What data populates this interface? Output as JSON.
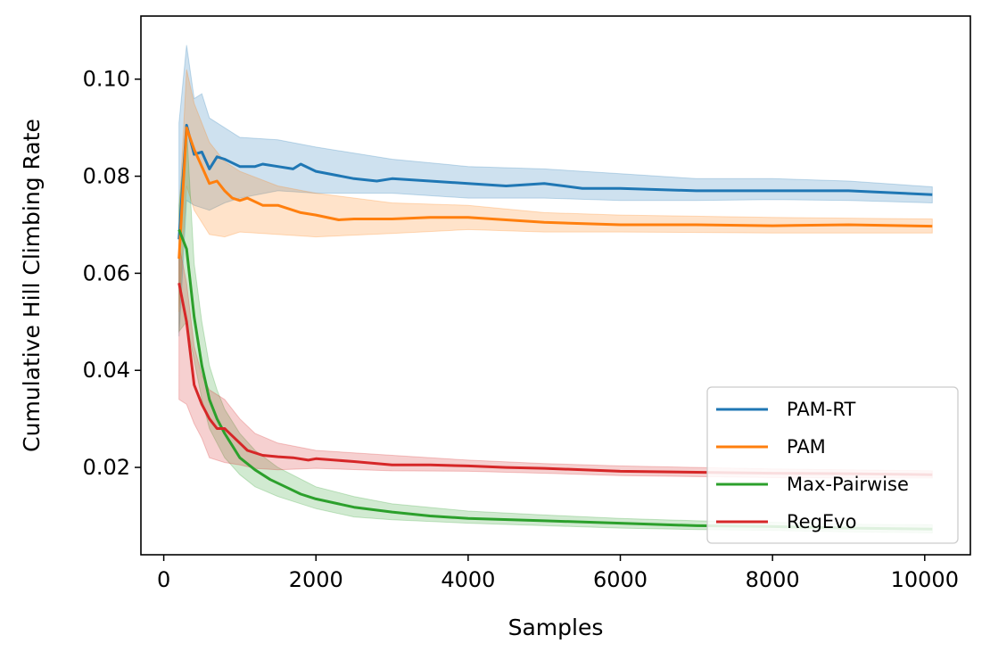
{
  "chart_data": {
    "type": "line",
    "xlabel": "Samples",
    "ylabel": "Cumulative Hill Climbing Rate",
    "xlim": [
      -300,
      10600
    ],
    "ylim": [
      0.002,
      0.113
    ],
    "xticks": [
      0,
      2000,
      4000,
      6000,
      8000,
      10000
    ],
    "xtick_labels": [
      "0",
      "2000",
      "4000",
      "6000",
      "8000",
      "10000"
    ],
    "yticks": [
      0.02,
      0.04,
      0.06,
      0.08,
      0.1
    ],
    "ytick_labels": [
      "0.02",
      "0.04",
      "0.06",
      "0.08",
      "0.10"
    ],
    "grid": false,
    "legend_position": "lower-right",
    "series": [
      {
        "name": "PAM-RT",
        "color": "#1f77b4",
        "points": [
          [
            200,
            0.067
          ],
          [
            300,
            0.0905
          ],
          [
            400,
            0.0845
          ],
          [
            500,
            0.085
          ],
          [
            600,
            0.0815
          ],
          [
            700,
            0.084
          ],
          [
            800,
            0.0835
          ],
          [
            1000,
            0.082
          ],
          [
            1200,
            0.082
          ],
          [
            1300,
            0.0825
          ],
          [
            1500,
            0.082
          ],
          [
            1700,
            0.0815
          ],
          [
            1800,
            0.0825
          ],
          [
            2000,
            0.081
          ],
          [
            2500,
            0.0795
          ],
          [
            2800,
            0.079
          ],
          [
            3000,
            0.0795
          ],
          [
            3500,
            0.079
          ],
          [
            4000,
            0.0785
          ],
          [
            4500,
            0.078
          ],
          [
            5000,
            0.0785
          ],
          [
            5500,
            0.0775
          ],
          [
            6000,
            0.0775
          ],
          [
            7000,
            0.077
          ],
          [
            8000,
            0.077
          ],
          [
            9000,
            0.077
          ],
          [
            10100,
            0.0762
          ]
        ],
        "band_upper": [
          [
            200,
            0.091
          ],
          [
            300,
            0.107
          ],
          [
            400,
            0.096
          ],
          [
            500,
            0.097
          ],
          [
            600,
            0.092
          ],
          [
            800,
            0.09
          ],
          [
            1000,
            0.088
          ],
          [
            1500,
            0.0875
          ],
          [
            2000,
            0.086
          ],
          [
            3000,
            0.0835
          ],
          [
            4000,
            0.082
          ],
          [
            5000,
            0.0815
          ],
          [
            6000,
            0.0805
          ],
          [
            7000,
            0.0795
          ],
          [
            8000,
            0.0795
          ],
          [
            9000,
            0.079
          ],
          [
            10100,
            0.0778
          ]
        ],
        "band_lower": [
          [
            200,
            0.047
          ],
          [
            300,
            0.075
          ],
          [
            400,
            0.074
          ],
          [
            600,
            0.073
          ],
          [
            800,
            0.0745
          ],
          [
            1000,
            0.0755
          ],
          [
            1500,
            0.077
          ],
          [
            2000,
            0.0765
          ],
          [
            3000,
            0.0765
          ],
          [
            4000,
            0.0755
          ],
          [
            5000,
            0.0755
          ],
          [
            6000,
            0.075
          ],
          [
            7000,
            0.075
          ],
          [
            8000,
            0.0752
          ],
          [
            9000,
            0.075
          ],
          [
            10100,
            0.0745
          ]
        ]
      },
      {
        "name": "PAM",
        "color": "#ff7f0e",
        "points": [
          [
            200,
            0.063
          ],
          [
            300,
            0.09
          ],
          [
            400,
            0.0855
          ],
          [
            500,
            0.082
          ],
          [
            600,
            0.0785
          ],
          [
            700,
            0.079
          ],
          [
            800,
            0.077
          ],
          [
            900,
            0.0755
          ],
          [
            1000,
            0.075
          ],
          [
            1100,
            0.0755
          ],
          [
            1300,
            0.074
          ],
          [
            1500,
            0.074
          ],
          [
            1800,
            0.0725
          ],
          [
            2000,
            0.072
          ],
          [
            2300,
            0.071
          ],
          [
            2500,
            0.0712
          ],
          [
            3000,
            0.0712
          ],
          [
            3500,
            0.0715
          ],
          [
            4000,
            0.0715
          ],
          [
            4500,
            0.071
          ],
          [
            5000,
            0.0705
          ],
          [
            6000,
            0.07
          ],
          [
            7000,
            0.07
          ],
          [
            8000,
            0.0698
          ],
          [
            9000,
            0.07
          ],
          [
            10100,
            0.0697
          ]
        ],
        "band_upper": [
          [
            200,
            0.072
          ],
          [
            300,
            0.102
          ],
          [
            400,
            0.095
          ],
          [
            600,
            0.087
          ],
          [
            800,
            0.083
          ],
          [
            1000,
            0.081
          ],
          [
            1500,
            0.078
          ],
          [
            2000,
            0.0765
          ],
          [
            3000,
            0.0745
          ],
          [
            4000,
            0.074
          ],
          [
            5000,
            0.0725
          ],
          [
            6000,
            0.072
          ],
          [
            8000,
            0.0715
          ],
          [
            10100,
            0.0712
          ]
        ],
        "band_lower": [
          [
            200,
            0.052
          ],
          [
            300,
            0.078
          ],
          [
            400,
            0.073
          ],
          [
            600,
            0.068
          ],
          [
            800,
            0.0675
          ],
          [
            1000,
            0.0685
          ],
          [
            1500,
            0.068
          ],
          [
            2000,
            0.0675
          ],
          [
            3000,
            0.0682
          ],
          [
            4000,
            0.069
          ],
          [
            5000,
            0.0685
          ],
          [
            6000,
            0.0685
          ],
          [
            8000,
            0.0683
          ],
          [
            10100,
            0.0683
          ]
        ]
      },
      {
        "name": "Max-Pairwise",
        "color": "#2ca02c",
        "points": [
          [
            200,
            0.069
          ],
          [
            300,
            0.065
          ],
          [
            400,
            0.051
          ],
          [
            500,
            0.041
          ],
          [
            600,
            0.034
          ],
          [
            700,
            0.03
          ],
          [
            800,
            0.027
          ],
          [
            900,
            0.0245
          ],
          [
            1000,
            0.022
          ],
          [
            1200,
            0.0195
          ],
          [
            1400,
            0.0175
          ],
          [
            1600,
            0.016
          ],
          [
            1800,
            0.0145
          ],
          [
            2000,
            0.0135
          ],
          [
            2500,
            0.0118
          ],
          [
            3000,
            0.0108
          ],
          [
            3500,
            0.01
          ],
          [
            4000,
            0.0095
          ],
          [
            5000,
            0.009
          ],
          [
            6000,
            0.0085
          ],
          [
            7000,
            0.008
          ],
          [
            8000,
            0.0078
          ],
          [
            9000,
            0.0075
          ],
          [
            10100,
            0.0073
          ]
        ],
        "band_upper": [
          [
            200,
            0.074
          ],
          [
            300,
            0.09
          ],
          [
            400,
            0.062
          ],
          [
            500,
            0.05
          ],
          [
            600,
            0.041
          ],
          [
            700,
            0.036
          ],
          [
            800,
            0.032
          ],
          [
            1000,
            0.027
          ],
          [
            1200,
            0.0235
          ],
          [
            1500,
            0.02
          ],
          [
            2000,
            0.016
          ],
          [
            2500,
            0.014
          ],
          [
            3000,
            0.0125
          ],
          [
            4000,
            0.011
          ],
          [
            5000,
            0.0102
          ],
          [
            6000,
            0.0095
          ],
          [
            7000,
            0.009
          ],
          [
            8000,
            0.0087
          ],
          [
            9000,
            0.0083
          ],
          [
            10100,
            0.0082
          ]
        ],
        "band_lower": [
          [
            200,
            0.048
          ],
          [
            300,
            0.05
          ],
          [
            400,
            0.042
          ],
          [
            500,
            0.034
          ],
          [
            600,
            0.028
          ],
          [
            700,
            0.025
          ],
          [
            800,
            0.022
          ],
          [
            1000,
            0.0185
          ],
          [
            1200,
            0.016
          ],
          [
            1500,
            0.014
          ],
          [
            2000,
            0.0115
          ],
          [
            2500,
            0.0098
          ],
          [
            3000,
            0.0092
          ],
          [
            4000,
            0.0085
          ],
          [
            5000,
            0.008
          ],
          [
            6000,
            0.0075
          ],
          [
            7000,
            0.0072
          ],
          [
            8000,
            0.007
          ],
          [
            9000,
            0.0067
          ],
          [
            10100,
            0.0065
          ]
        ]
      },
      {
        "name": "RegEvo",
        "color": "#d62728",
        "points": [
          [
            200,
            0.058
          ],
          [
            300,
            0.05
          ],
          [
            400,
            0.037
          ],
          [
            500,
            0.033
          ],
          [
            600,
            0.03
          ],
          [
            700,
            0.028
          ],
          [
            800,
            0.028
          ],
          [
            900,
            0.0265
          ],
          [
            1000,
            0.025
          ],
          [
            1100,
            0.0235
          ],
          [
            1300,
            0.0225
          ],
          [
            1500,
            0.0222
          ],
          [
            1700,
            0.022
          ],
          [
            1900,
            0.0215
          ],
          [
            2000,
            0.0218
          ],
          [
            2500,
            0.0212
          ],
          [
            3000,
            0.0205
          ],
          [
            3500,
            0.0205
          ],
          [
            4000,
            0.0203
          ],
          [
            4500,
            0.02
          ],
          [
            5000,
            0.0198
          ],
          [
            6000,
            0.0192
          ],
          [
            7000,
            0.019
          ],
          [
            8000,
            0.0188
          ],
          [
            9000,
            0.0187
          ],
          [
            10100,
            0.0185
          ]
        ],
        "band_upper": [
          [
            200,
            0.066
          ],
          [
            300,
            0.058
          ],
          [
            400,
            0.045
          ],
          [
            500,
            0.039
          ],
          [
            600,
            0.036
          ],
          [
            800,
            0.034
          ],
          [
            1000,
            0.03
          ],
          [
            1200,
            0.027
          ],
          [
            1500,
            0.025
          ],
          [
            2000,
            0.0235
          ],
          [
            3000,
            0.0225
          ],
          [
            4000,
            0.0215
          ],
          [
            5000,
            0.0208
          ],
          [
            6000,
            0.0203
          ],
          [
            7000,
            0.02
          ],
          [
            8000,
            0.0197
          ],
          [
            9000,
            0.0195
          ],
          [
            10100,
            0.0193
          ]
        ],
        "band_lower": [
          [
            200,
            0.034
          ],
          [
            300,
            0.033
          ],
          [
            400,
            0.029
          ],
          [
            500,
            0.026
          ],
          [
            600,
            0.022
          ],
          [
            800,
            0.021
          ],
          [
            1000,
            0.0205
          ],
          [
            1200,
            0.0198
          ],
          [
            1500,
            0.0195
          ],
          [
            2000,
            0.0198
          ],
          [
            3000,
            0.0193
          ],
          [
            4000,
            0.0192
          ],
          [
            5000,
            0.0188
          ],
          [
            6000,
            0.0183
          ],
          [
            7000,
            0.0181
          ],
          [
            8000,
            0.0179
          ],
          [
            9000,
            0.0178
          ],
          [
            10100,
            0.0178
          ]
        ]
      }
    ]
  }
}
